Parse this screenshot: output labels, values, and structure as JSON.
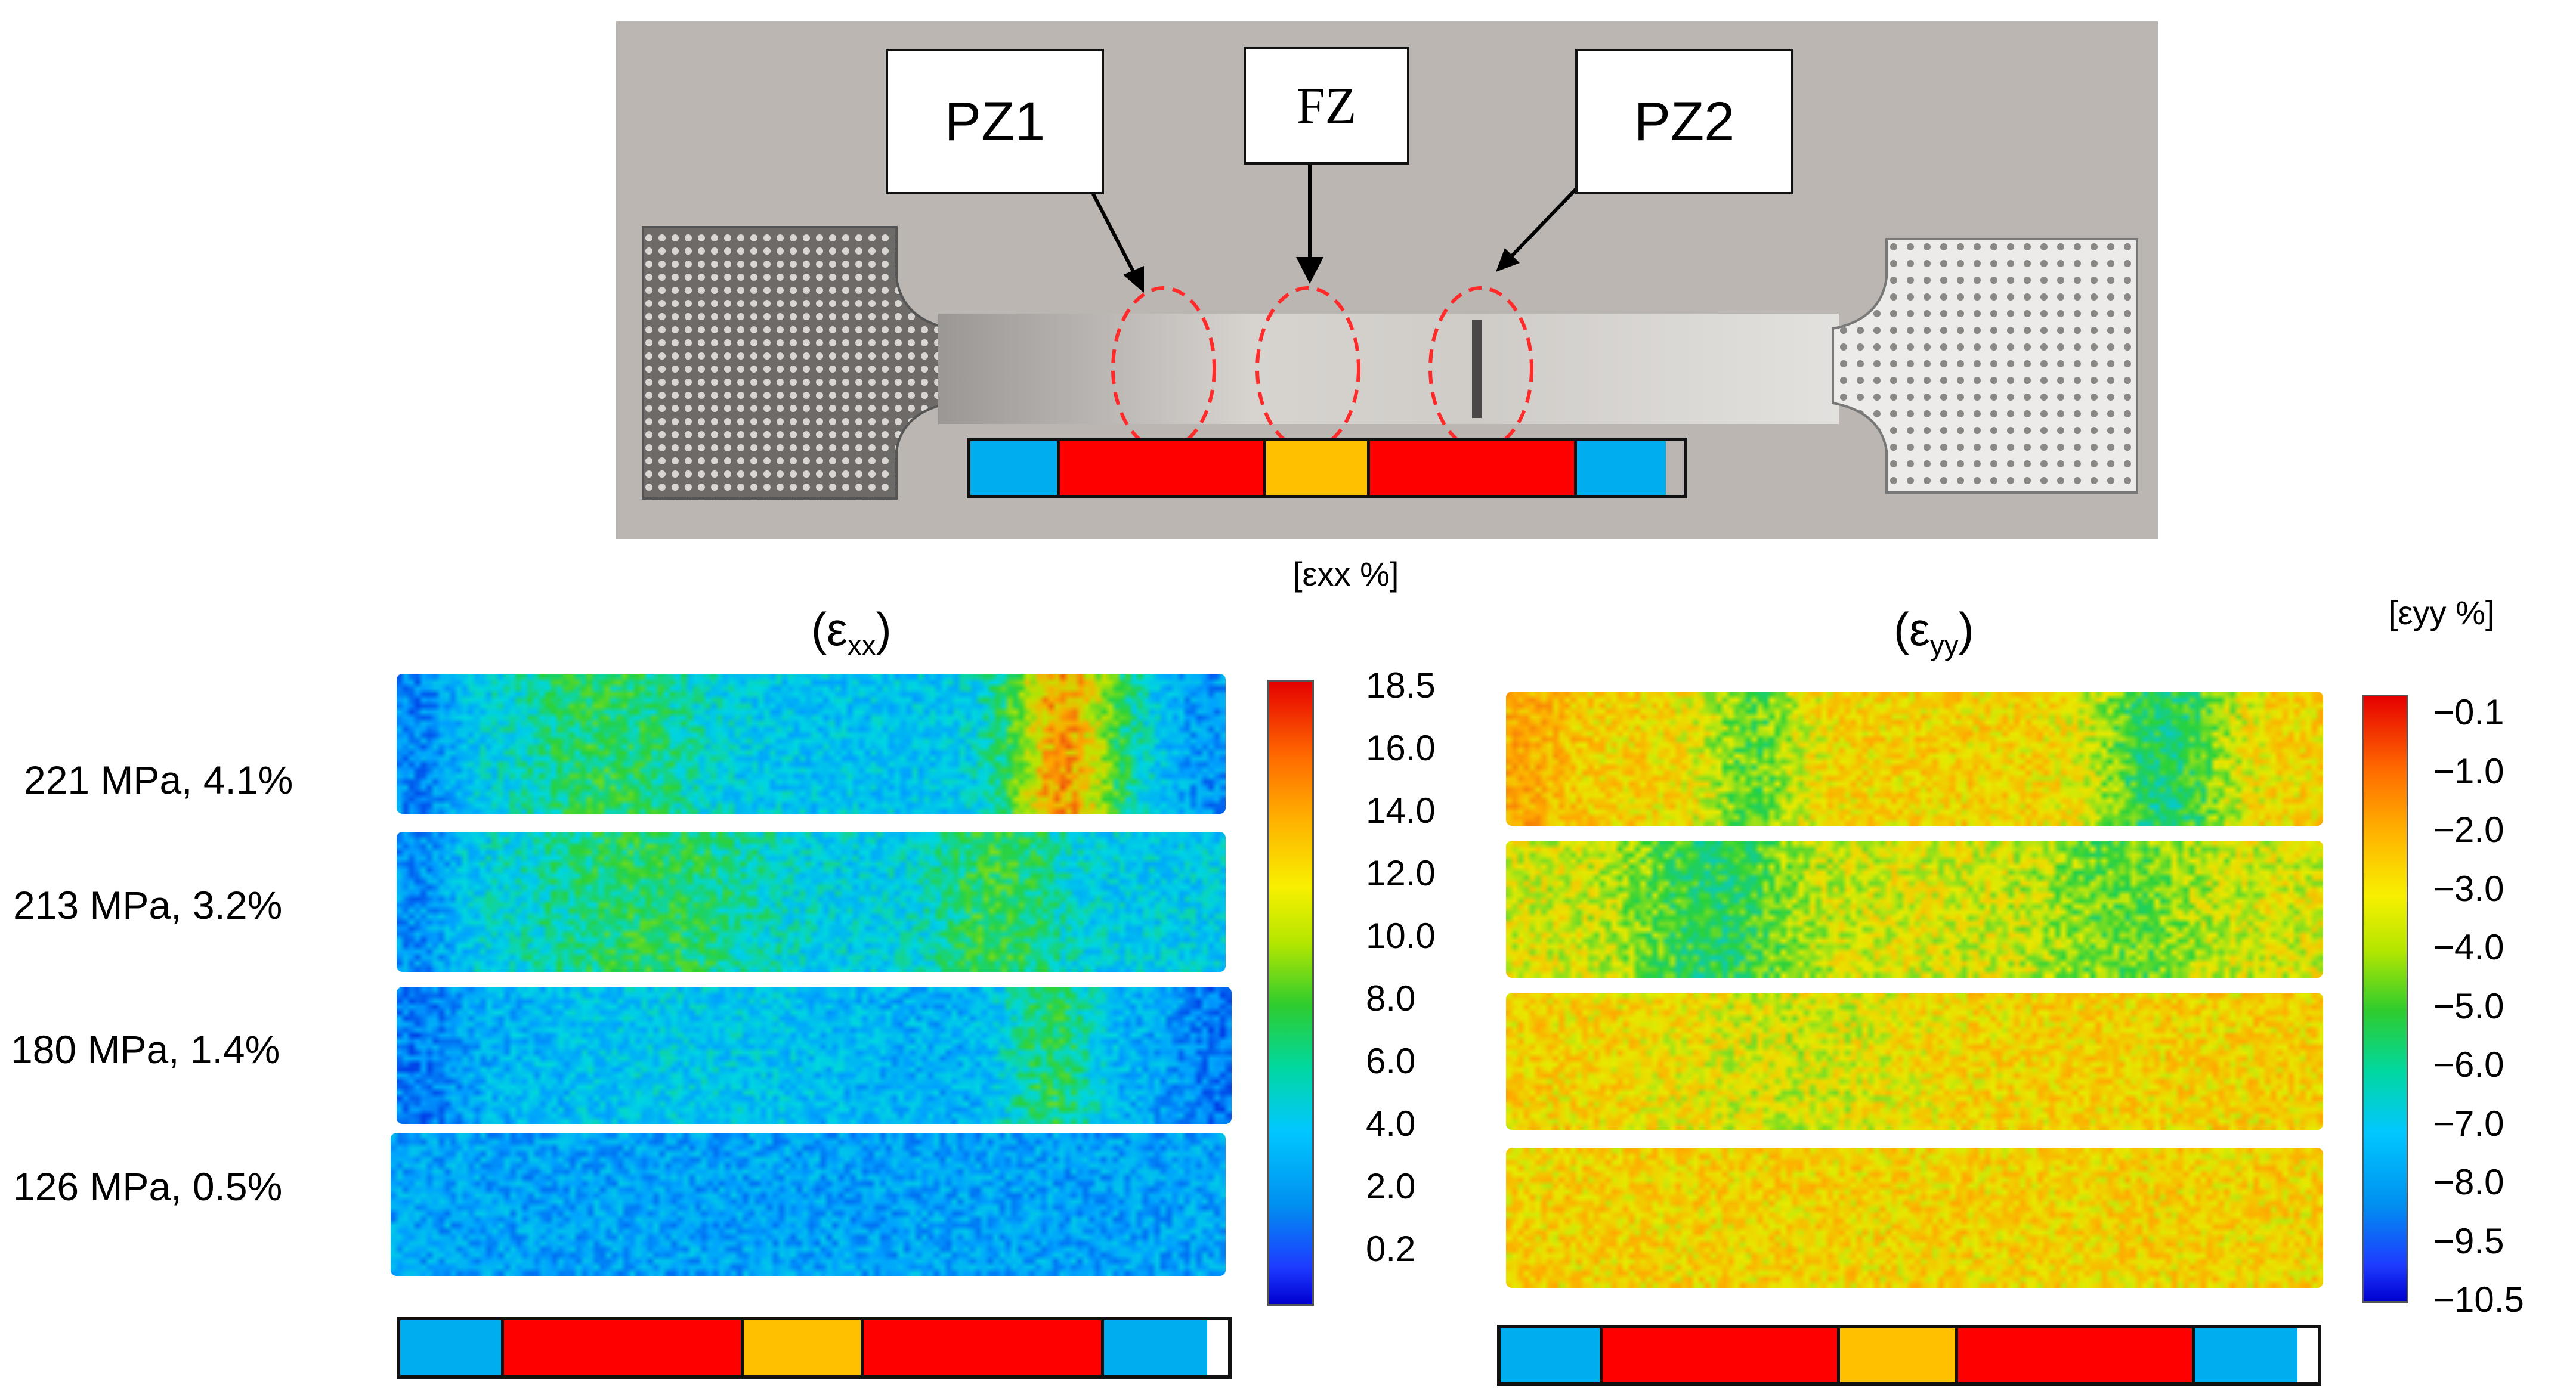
{
  "photo": {
    "labels": {
      "pz1": "PZ1",
      "fz": "FZ",
      "pz2": "PZ2"
    }
  },
  "zone_colors": {
    "grip": "#00aeef",
    "pz": "#ff0000",
    "fz": "#ffc000"
  },
  "zone_bar_proportions": [
    0.125,
    0.29,
    0.145,
    0.29,
    0.125
  ],
  "panel_left": {
    "title_symbol": "(ε",
    "title_sub": "xx",
    "title_close": ")",
    "colorbar_title": "[εxx %]",
    "colorbar_ticks": [
      "18.5",
      "16.0",
      "14.0",
      "12.0",
      "10.0",
      "8.0",
      "6.0",
      "4.0",
      "2.0",
      "0.2"
    ]
  },
  "panel_right": {
    "title_symbol": "(ε",
    "title_sub": "yy",
    "title_close": ")",
    "colorbar_title": "[εyy %]",
    "colorbar_ticks": [
      "−0.1",
      "−1.0",
      "−2.0",
      "−3.0",
      "−4.0",
      "−5.0",
      "−6.0",
      "−7.0",
      "−8.0",
      "−9.5",
      "−10.5"
    ]
  },
  "rows": [
    {
      "label": "221 MPa, 4.1%"
    },
    {
      "label": "213 MPa, 3.2%"
    },
    {
      "label": "180 MPa, 1.4%"
    },
    {
      "label": "126 MPa, 0.5%"
    }
  ]
}
